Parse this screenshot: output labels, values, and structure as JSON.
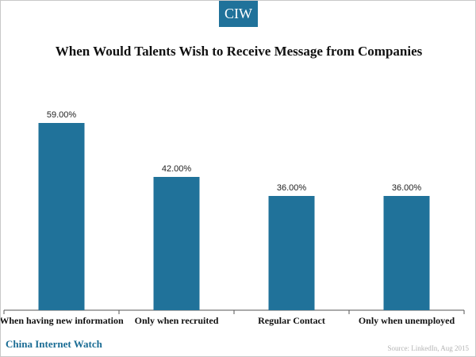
{
  "header": {
    "logo_text": "CIW"
  },
  "chart_data": {
    "type": "bar",
    "title": "When Would Talents Wish to Receive Message from Companies",
    "categories": [
      "When having new information",
      "Only when recruited",
      "Regular Contact",
      "Only when unemployed"
    ],
    "values": [
      59.0,
      42.0,
      36.0,
      36.0
    ],
    "value_labels": [
      "59.00%",
      "42.00%",
      "36.00%",
      "36.00%"
    ],
    "ylim": [
      0,
      70
    ],
    "xlabel": "",
    "ylabel": "",
    "grid": false,
    "legend": "none"
  },
  "footer": {
    "brand": "China Internet Watch",
    "source": "Source: LinkedIn, Aug 2015"
  },
  "colors": {
    "bar": "#20729a",
    "brand": "#1a6c94",
    "logo_bg": "#20729a",
    "axis": "#555555"
  }
}
